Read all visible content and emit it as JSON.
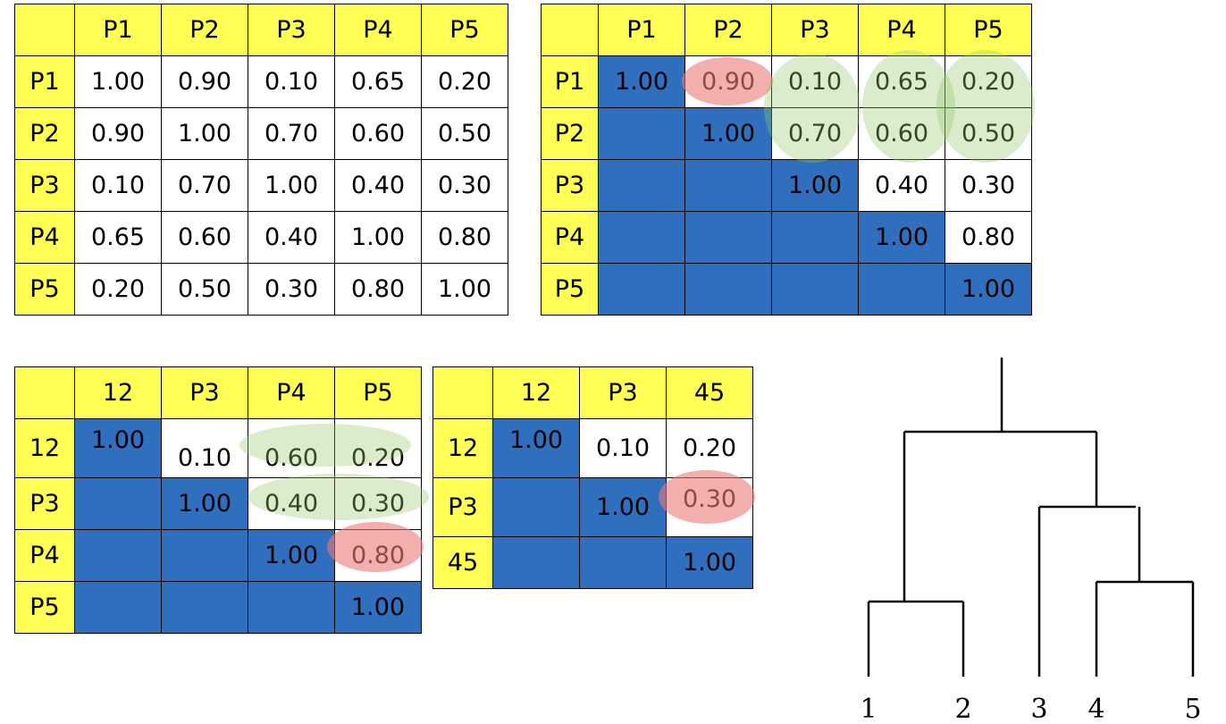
{
  "matrix_full": {
    "headers": [
      "P1",
      "P2",
      "P3",
      "P4",
      "P5"
    ],
    "rows": [
      {
        "label": "P1",
        "cells": [
          "1.00",
          "0.90",
          "0.10",
          "0.65",
          "0.20"
        ]
      },
      {
        "label": "P2",
        "cells": [
          "0.90",
          "1.00",
          "0.70",
          "0.60",
          "0.50"
        ]
      },
      {
        "label": "P3",
        "cells": [
          "0.10",
          "0.70",
          "1.00",
          "0.40",
          "0.30"
        ]
      },
      {
        "label": "P4",
        "cells": [
          "0.65",
          "0.60",
          "0.40",
          "1.00",
          "0.80"
        ]
      },
      {
        "label": "P5",
        "cells": [
          "0.20",
          "0.50",
          "0.30",
          "0.80",
          "1.00"
        ]
      }
    ]
  },
  "matrix_upper": {
    "headers": [
      "P1",
      "P2",
      "P3",
      "P4",
      "P5"
    ],
    "rows": [
      {
        "label": "P1",
        "cells": [
          "1.00",
          "0.90",
          "0.10",
          "0.65",
          "0.20"
        ]
      },
      {
        "label": "P2",
        "cells": [
          "",
          "1.00",
          "0.70",
          "0.60",
          "0.50"
        ]
      },
      {
        "label": "P3",
        "cells": [
          "",
          "",
          "1.00",
          "0.40",
          "0.30"
        ]
      },
      {
        "label": "P4",
        "cells": [
          "",
          "",
          "",
          "1.00",
          "0.80"
        ]
      },
      {
        "label": "P5",
        "cells": [
          "",
          "",
          "",
          "",
          "1.00"
        ]
      }
    ]
  },
  "matrix_step2": {
    "headers": [
      "12",
      "P3",
      "P4",
      "P5"
    ],
    "rows": [
      {
        "label": "12",
        "cells": [
          "1.00",
          "0.10",
          "0.60",
          "0.20"
        ]
      },
      {
        "label": "P3",
        "cells": [
          "",
          "1.00",
          "0.40",
          "0.30"
        ]
      },
      {
        "label": "P4",
        "cells": [
          "",
          "",
          "1.00",
          "0.80"
        ]
      },
      {
        "label": "P5",
        "cells": [
          "",
          "",
          "",
          "1.00"
        ]
      }
    ]
  },
  "matrix_step3": {
    "headers": [
      "12",
      "P3",
      "45"
    ],
    "rows": [
      {
        "label": "12",
        "cells": [
          "1.00",
          "0.10",
          "0.20"
        ]
      },
      {
        "label": "P3",
        "cells": [
          "",
          "1.00",
          "0.30"
        ]
      },
      {
        "label": "45",
        "cells": [
          "",
          "",
          "1.00"
        ]
      }
    ]
  },
  "dendrogram": {
    "leaves": [
      "1",
      "2",
      "3",
      "4",
      "5"
    ]
  },
  "colors": {
    "header": "#ffff55",
    "diagonal_fill": "#2f6fbd",
    "highlight_red": "#eb7878",
    "highlight_green": "#96c86e"
  }
}
